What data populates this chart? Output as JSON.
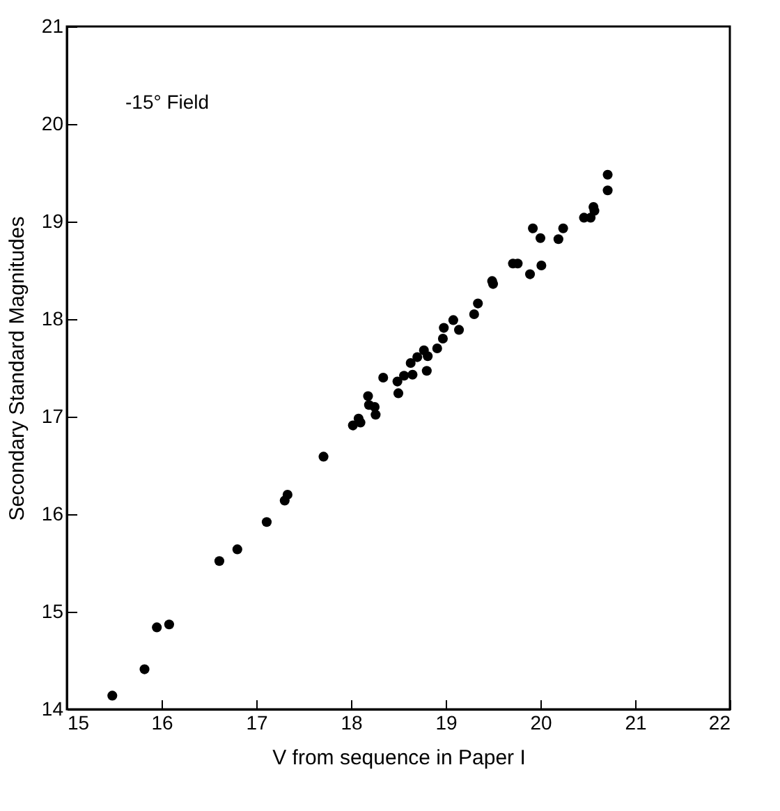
{
  "chart_data": {
    "type": "scatter",
    "xlabel": "V from sequence in Paper I",
    "ylabel": "Secondary Standard Magnitudes",
    "annotations": [
      "-15° Field"
    ],
    "x": [
      15.48,
      15.82,
      15.95,
      16.08,
      16.61,
      16.8,
      17.11,
      17.3,
      17.33,
      17.71,
      18.02,
      18.08,
      18.1,
      18.18,
      18.19,
      18.25,
      18.26,
      18.34,
      18.49,
      18.5,
      18.56,
      18.65,
      18.63,
      18.7,
      18.8,
      18.77,
      18.81,
      18.91,
      18.97,
      18.98,
      19.08,
      19.14,
      19.3,
      19.34,
      19.49,
      19.5,
      19.71,
      19.76,
      19.89,
      20.01,
      19.92,
      20.0,
      20.19,
      20.24,
      20.46,
      20.53,
      20.56,
      20.57,
      20.71,
      20.71
    ],
    "series": [
      {
        "color": "#000000",
        "values": [
          14.14,
          14.41,
          14.84,
          14.87,
          15.52,
          15.64,
          15.92,
          16.14,
          16.2,
          16.59,
          16.91,
          16.98,
          16.94,
          17.21,
          17.12,
          17.1,
          17.02,
          17.4,
          17.36,
          17.24,
          17.42,
          17.43,
          17.55,
          17.61,
          17.47,
          17.68,
          17.62,
          17.7,
          17.8,
          17.91,
          17.99,
          17.89,
          18.05,
          18.16,
          18.39,
          18.36,
          18.57,
          18.57,
          18.46,
          18.55,
          18.93,
          18.83,
          18.82,
          18.93,
          19.04,
          19.04,
          19.15,
          19.11,
          19.32,
          19.48
        ]
      }
    ],
    "xlim": [
      15,
      22
    ],
    "ylim": [
      14,
      21
    ],
    "xticks": [
      15,
      16,
      17,
      18,
      19,
      20,
      21,
      22
    ],
    "yticks": [
      14,
      15,
      16,
      17,
      18,
      19,
      20,
      21
    ],
    "grid": false,
    "marker": "circle"
  }
}
